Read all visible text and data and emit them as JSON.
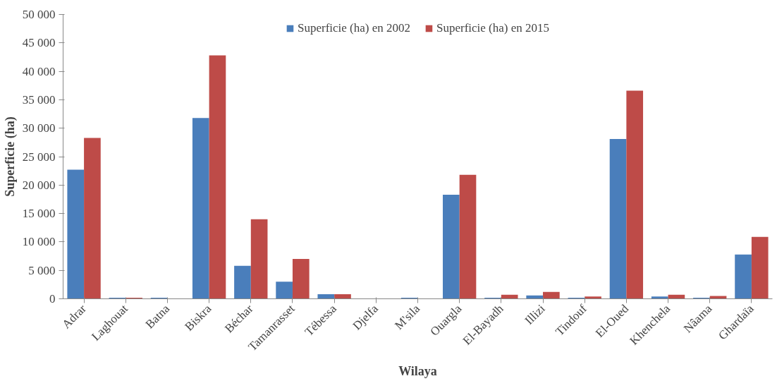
{
  "chart_data": {
    "type": "bar",
    "xlabel": "Wilaya",
    "ylabel": "Superficie (ha)",
    "categories": [
      "Adrar",
      "Laghouat",
      "Batna",
      "Biskra",
      "Béchar",
      "Tamanrasset",
      "Tébessa",
      "Djelfa",
      "M'sila",
      "Ouargla",
      "El-Bayadh",
      "Illizi",
      "Tindouf",
      "El-Oued",
      "Khenchela",
      "Nâama",
      "Ghardaïa"
    ],
    "series": [
      {
        "name": "Superficie (ha) en 2002",
        "color": "#4a7ebb",
        "values": [
          22700,
          200,
          200,
          31800,
          5800,
          3000,
          800,
          0,
          200,
          18300,
          200,
          600,
          200,
          28100,
          400,
          200,
          7800
        ]
      },
      {
        "name": "Superficie (ha) en 2015",
        "color": "#be4b48",
        "values": [
          28300,
          200,
          0,
          42800,
          14000,
          7000,
          800,
          0,
          0,
          21800,
          700,
          1200,
          400,
          36600,
          700,
          500,
          10900
        ]
      }
    ],
    "ylim": [
      0,
      50000
    ],
    "yticks": [
      {
        "value": 0,
        "label": "0"
      },
      {
        "value": 5000,
        "label": "5 000"
      },
      {
        "value": 10000,
        "label": "10 000"
      },
      {
        "value": 15000,
        "label": "15 000"
      },
      {
        "value": 20000,
        "label": "20 000"
      },
      {
        "value": 25000,
        "label": "25 000"
      },
      {
        "value": 30000,
        "label": "30 000"
      },
      {
        "value": 35000,
        "label": "35 000"
      },
      {
        "value": 40000,
        "label": "40 000"
      },
      {
        "value": 45000,
        "label": "45 000"
      },
      {
        "value": 50000,
        "label": "50 000"
      }
    ],
    "legend": "top",
    "grid": false
  }
}
